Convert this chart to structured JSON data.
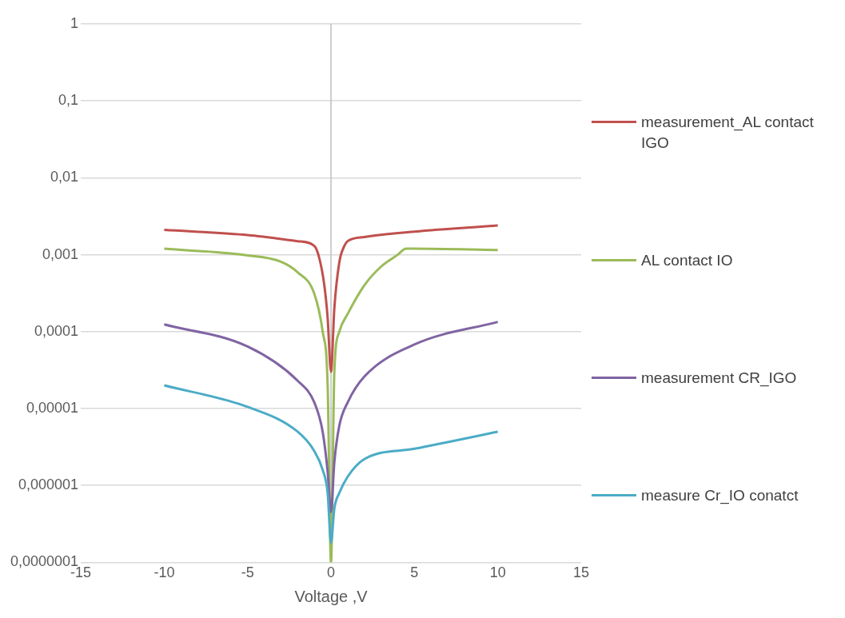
{
  "chart_data": {
    "type": "line",
    "xlabel": "Voltage ,V",
    "xlim": [
      -15,
      15
    ],
    "xticks": [
      -15,
      -10,
      -5,
      0,
      5,
      10,
      15
    ],
    "ylim": [
      1e-07,
      1
    ],
    "log": "y",
    "yticks": [
      1,
      {
        "value": 0.1,
        "label": "0,1"
      },
      {
        "value": 0.01,
        "label": "0,01"
      },
      {
        "value": 0.001,
        "label": "0,001"
      },
      {
        "value": 0.0001,
        "label": "0,0001"
      },
      {
        "value": 1e-05,
        "label": "0,00001"
      },
      {
        "value": 1e-06,
        "label": "0,000001"
      },
      {
        "value": 1e-07,
        "label": "0,0000001"
      }
    ],
    "grid": "y",
    "legend": "right",
    "marker": "none",
    "line_style": "solid",
    "series": [
      {
        "name": "measurement_AL contact IGO",
        "color": "#c0504d",
        "x": [
          -10,
          -5,
          -2,
          -1,
          -0.7,
          -0.4,
          -0.2,
          0,
          0.2,
          0.5,
          0.8,
          1,
          2,
          5,
          10
        ],
        "values": [
          0.0021,
          0.0018,
          0.0015,
          0.0013,
          0.0009,
          0.0004,
          0.00015,
          3e-05,
          0.0002,
          0.0008,
          0.0013,
          0.0015,
          0.0017,
          0.002,
          0.0024
        ]
      },
      {
        "name": "AL contact IO",
        "color": "#9bbb59",
        "x": [
          -10,
          -5,
          -3,
          -2,
          -1,
          -0.5,
          -0.2,
          0,
          0.2,
          0.5,
          1,
          2,
          3,
          4,
          4.5,
          5,
          10
        ],
        "values": [
          0.0012,
          0.00098,
          0.00081,
          0.00059,
          0.00031,
          0.0001,
          2e-05,
          1e-07,
          3e-05,
          0.0001,
          0.00017,
          0.0004,
          0.0007,
          0.001,
          0.0012,
          0.0012,
          0.00115
        ]
      },
      {
        "name": "measurement CR_IGO",
        "color": "#8064a2",
        "x": [
          -10,
          -5,
          -2,
          -1,
          -0.5,
          -0.2,
          0,
          0.2,
          0.5,
          1,
          2,
          5,
          10
        ],
        "values": [
          0.000124,
          6.4e-05,
          2.3e-05,
          1.2e-05,
          5e-06,
          1.5e-06,
          4.5e-07,
          2e-06,
          6e-06,
          1.2e-05,
          2.6e-05,
          6.8e-05,
          0.000134
        ]
      },
      {
        "name": "measure Cr_IO conatct",
        "color": "#4bacc6",
        "x": [
          -10,
          -5,
          -2,
          -1,
          -0.5,
          -0.2,
          0,
          0.2,
          0.5,
          1,
          2,
          5,
          10
        ],
        "values": [
          2e-05,
          1.05e-05,
          5e-06,
          2.8e-06,
          1.6e-06,
          8e-07,
          1.8e-07,
          5e-07,
          8e-07,
          1.3e-06,
          2.2e-06,
          3e-06,
          5e-06
        ]
      }
    ]
  }
}
